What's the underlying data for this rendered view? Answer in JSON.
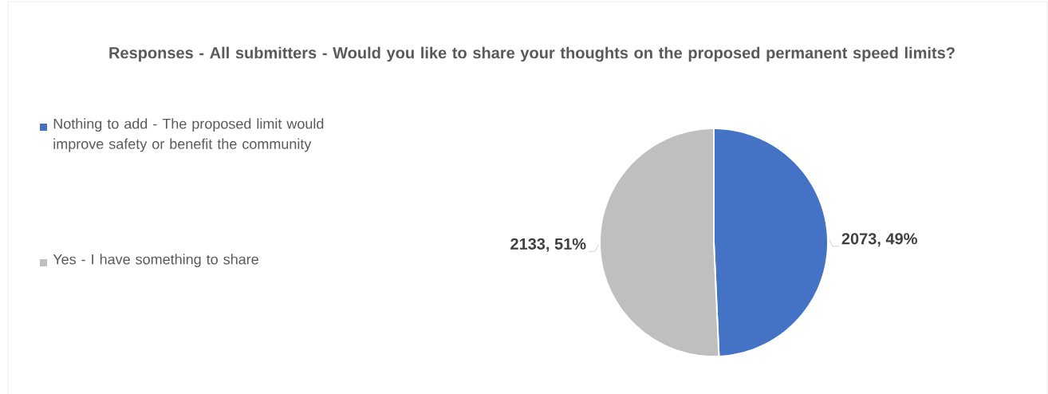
{
  "chart_data": {
    "type": "pie",
    "title": "Responses - All submitters - Would you like to share your thoughts on the proposed permanent speed limits?",
    "categories": [
      "Nothing to add - The proposed limit would improve safety or benefit the community",
      "Yes - I have something to share"
    ],
    "values": [
      2073,
      2133
    ],
    "colors": [
      "#4472c4",
      "#bfbfbf"
    ],
    "value_labels": [
      "2073, 49%",
      "2133, 51%"
    ],
    "legend": "left"
  }
}
